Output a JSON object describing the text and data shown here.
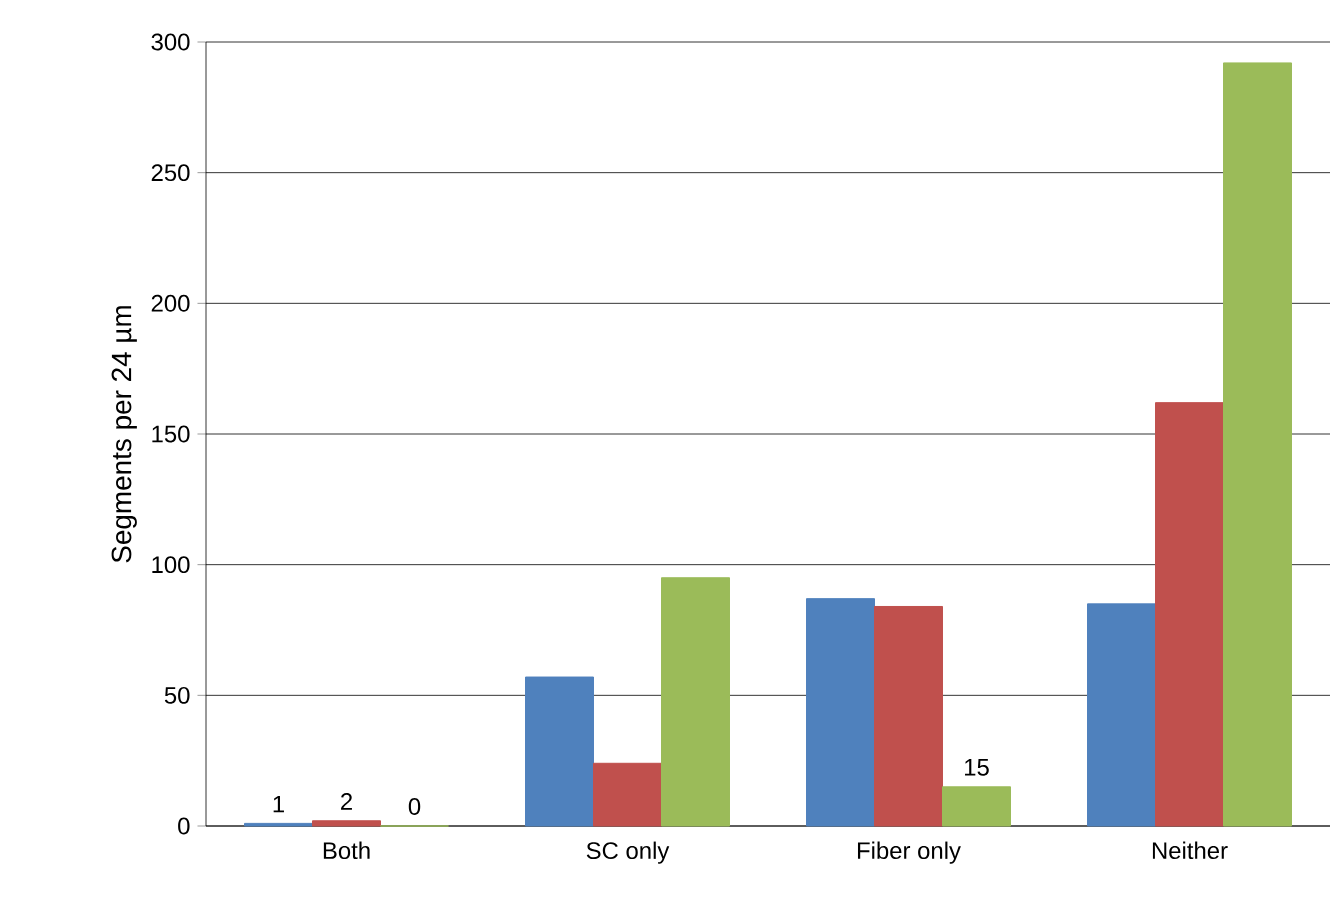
{
  "chart_data": {
    "type": "bar",
    "ylabel": "Segments per 24 µm",
    "categories": [
      "Both",
      "SC only",
      "Fiber only",
      "Neither"
    ],
    "series": [
      {
        "color": "#4f81bd",
        "values": [
          1,
          57,
          87,
          85
        ],
        "value_labels": [
          "1",
          null,
          null,
          null
        ]
      },
      {
        "color": "#c0504d",
        "values": [
          2,
          24,
          84,
          162
        ],
        "value_labels": [
          "2",
          null,
          null,
          null
        ]
      },
      {
        "color": "#9bbb59",
        "values": [
          0,
          95,
          15,
          292
        ],
        "value_labels": [
          "0",
          null,
          "15",
          null
        ]
      }
    ],
    "ylim": [
      0,
      300
    ],
    "yticks": [
      0,
      50,
      100,
      150,
      200,
      250,
      300
    ],
    "grid": "y"
  }
}
